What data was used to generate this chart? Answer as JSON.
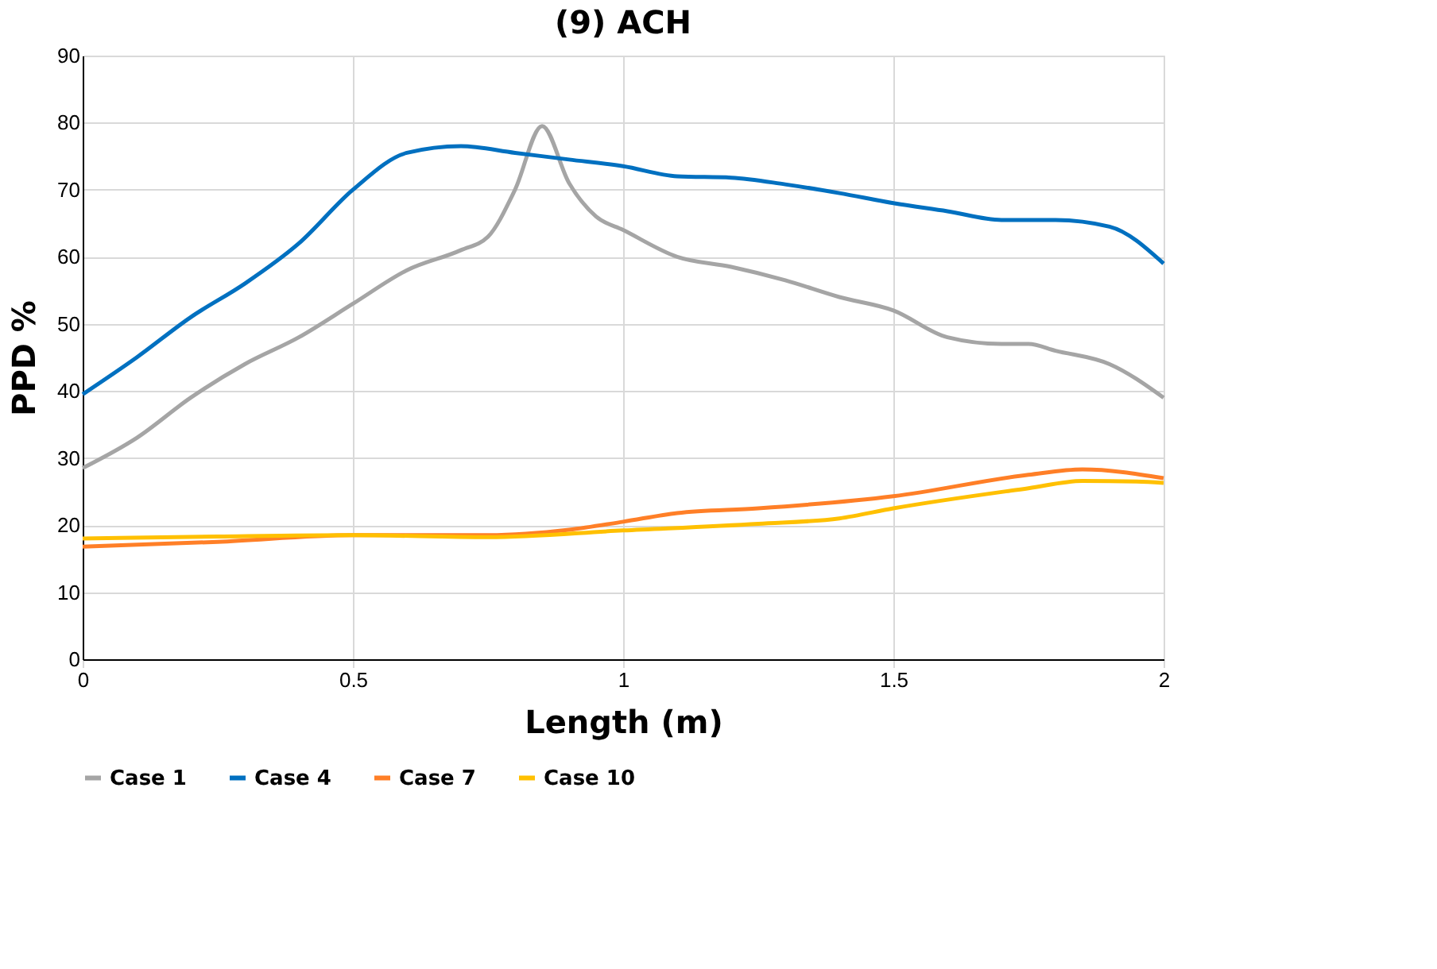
{
  "chart_data": {
    "type": "line",
    "title": "(9) ACH",
    "xlabel": "Length (m)",
    "ylabel": "PPD %",
    "xlim": [
      0,
      2
    ],
    "xticks": [
      0,
      0.5,
      1,
      1.5,
      2
    ],
    "ylim": [
      0,
      90
    ],
    "yticks": [
      0,
      10,
      20,
      30,
      40,
      50,
      60,
      70,
      80,
      90
    ],
    "grid": true,
    "legend": "bottom",
    "marker": "none",
    "line_style": "solid",
    "series": [
      {
        "name": "Case 1",
        "color": "#a5a5a5",
        "x": [
          0,
          0.1,
          0.2,
          0.3,
          0.4,
          0.5,
          0.6,
          0.7,
          0.75,
          0.8,
          0.85,
          0.9,
          0.95,
          1.0,
          1.1,
          1.2,
          1.3,
          1.4,
          1.5,
          1.6,
          1.7,
          1.75,
          1.8,
          1.9,
          2.0
        ],
        "values": [
          28.5,
          33,
          39,
          44,
          48,
          53,
          58,
          61,
          63,
          70,
          79.5,
          71,
          66,
          64,
          60,
          58.5,
          56.5,
          54,
          52,
          48,
          47,
          47,
          46,
          44,
          39
        ]
      },
      {
        "name": "Case 4",
        "color": "#0070c0",
        "x": [
          0,
          0.1,
          0.2,
          0.3,
          0.4,
          0.5,
          0.6,
          0.7,
          0.8,
          0.9,
          1.0,
          1.1,
          1.2,
          1.3,
          1.4,
          1.5,
          1.6,
          1.7,
          1.8,
          1.9,
          2.0
        ],
        "values": [
          39.5,
          45,
          51,
          56,
          62,
          70,
          75.5,
          76.5,
          75.5,
          74.5,
          73.5,
          72,
          71.8,
          70.8,
          69.5,
          68,
          66.8,
          65.5,
          65.5,
          64.5,
          59
        ]
      },
      {
        "name": "Case 7",
        "color": "#ff7f27",
        "x": [
          0,
          0.25,
          0.5,
          0.75,
          0.9,
          1.0,
          1.1,
          1.25,
          1.5,
          1.75,
          1.85,
          2.0
        ],
        "values": [
          16.8,
          17.5,
          18.5,
          18.5,
          19.3,
          20.5,
          21.8,
          22.5,
          24.3,
          27.5,
          28.3,
          27
        ]
      },
      {
        "name": "Case 10",
        "color": "#ffc000",
        "x": [
          0,
          0.25,
          0.5,
          0.75,
          1.0,
          1.25,
          1.4,
          1.5,
          1.75,
          1.85,
          1.95,
          2.0
        ],
        "values": [
          18,
          18.3,
          18.5,
          18.2,
          19.2,
          20.2,
          21,
          22.5,
          25.5,
          26.6,
          26.5,
          26.3
        ]
      }
    ]
  }
}
